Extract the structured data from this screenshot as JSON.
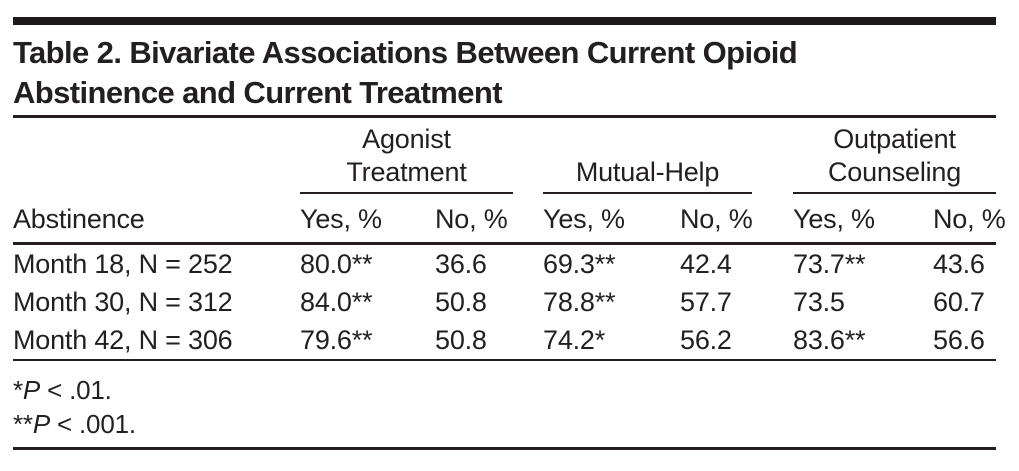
{
  "colors": {
    "ink": "#231f20",
    "background": "#ffffff"
  },
  "header": {
    "title_lines": [
      "Table 2. Bivariate Associations Between Current Opioid",
      "Abstinence and Current Treatment"
    ]
  },
  "table": {
    "stub_header": "Abstinence",
    "groups": [
      {
        "label": "Agonist Treatment",
        "lines": [
          "Agonist",
          "Treatment"
        ],
        "subheaders": [
          "Yes, %",
          "No, %"
        ]
      },
      {
        "label": "Mutual-Help",
        "lines": [
          "Mutual-Help"
        ],
        "subheaders": [
          "Yes, %",
          "No, %"
        ]
      },
      {
        "label": "Outpatient Counseling",
        "lines": [
          "Outpatient",
          "Counseling"
        ],
        "subheaders": [
          "Yes, %",
          "No, %"
        ]
      }
    ],
    "rows": [
      {
        "label": "Month 18, N = 252",
        "values": [
          "80.0**",
          "36.6",
          "69.3**",
          "42.4",
          "73.7**",
          "43.6"
        ]
      },
      {
        "label": "Month 30, N = 312",
        "values": [
          "84.0**",
          "50.8",
          "78.8**",
          "57.7",
          "73.5",
          "60.7"
        ]
      },
      {
        "label": "Month 42, N = 306",
        "values": [
          "79.6**",
          "50.8",
          "74.2*",
          "56.2",
          "83.6**",
          "56.6"
        ]
      }
    ],
    "footnotes": [
      {
        "marker": "*",
        "p": "P",
        "text": " < .01."
      },
      {
        "marker": "**",
        "p": "P",
        "text": " < .001."
      }
    ]
  }
}
